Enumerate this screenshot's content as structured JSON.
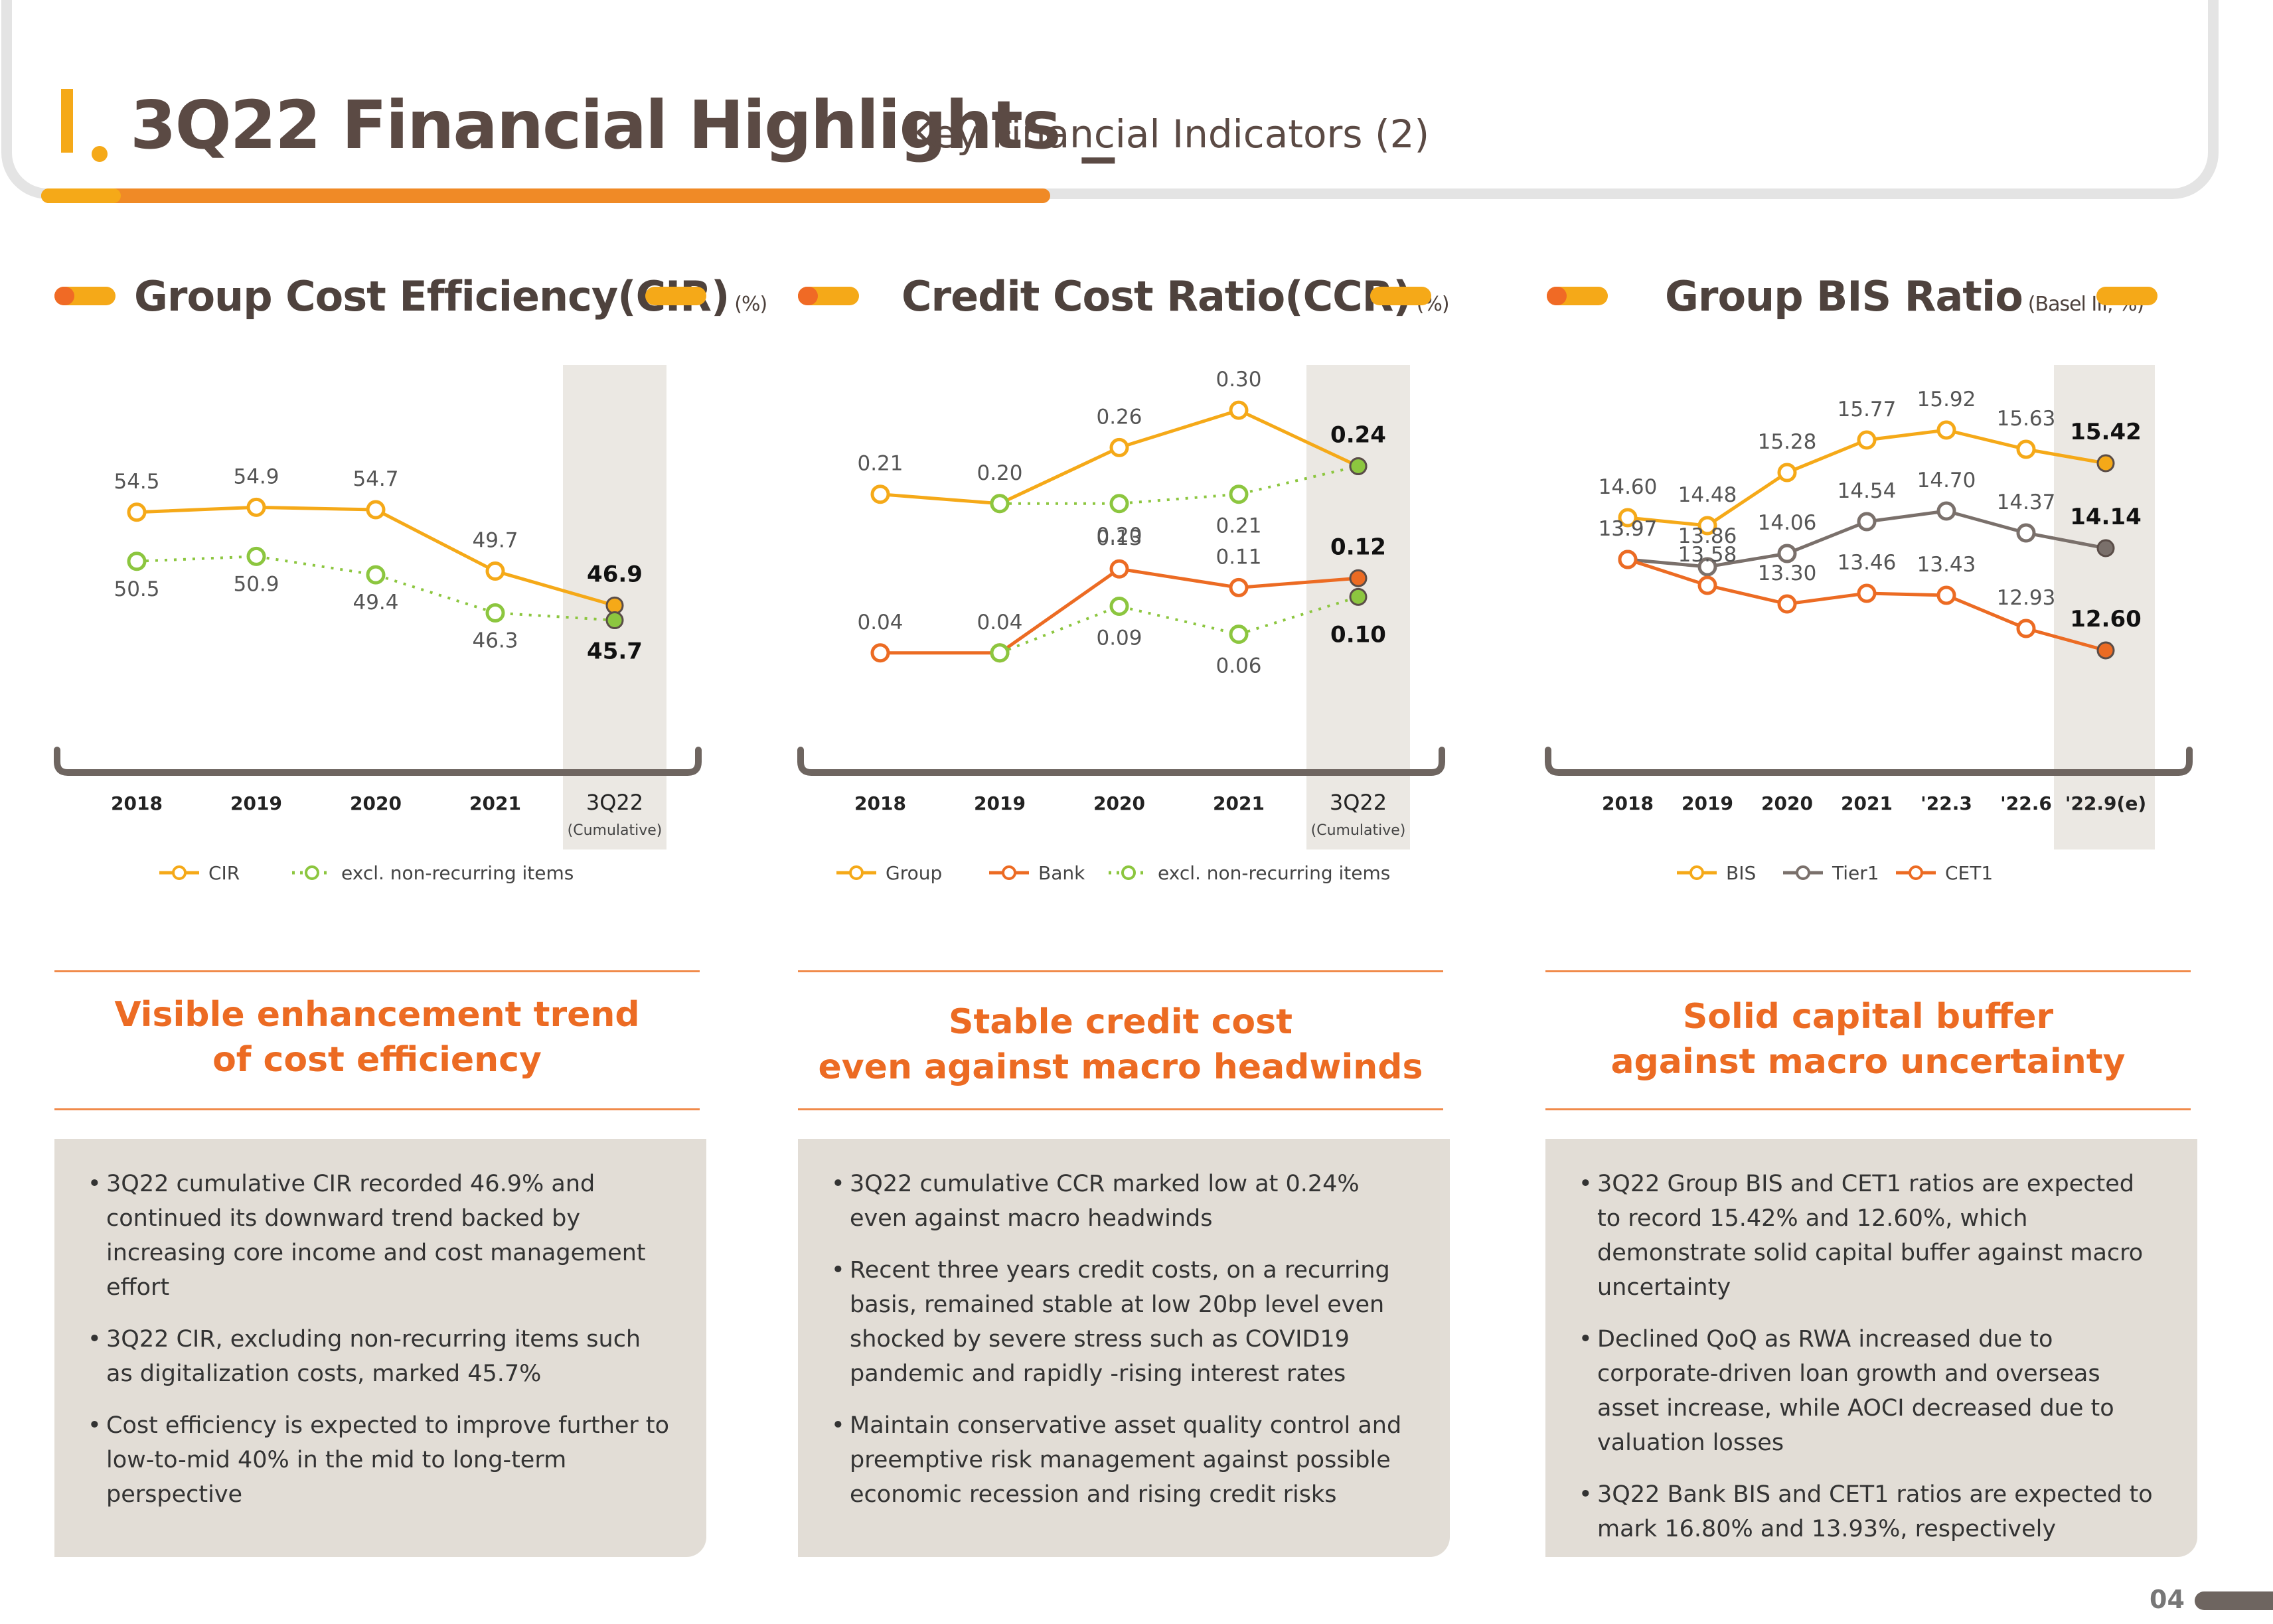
{
  "header": {
    "roman": "I.",
    "title": "3Q22 Financial Highlights _",
    "subtitle": "Key Financial Indicators (2)"
  },
  "page_number": "04",
  "colors": {
    "orange": "#ec6b23",
    "yellow": "#f5a918",
    "green": "#8cc63f",
    "grey": "#7a706b"
  },
  "sections": [
    {
      "title": "Group Cost Efficiency(CIR)",
      "unit": "(%)",
      "headline_line1": "Visible enhancement trend",
      "headline_line2": "of cost efficiency",
      "bullets": [
        "3Q22 cumulative CIR recorded 46.9% and continued its downward trend backed by increasing core income and cost management effort",
        "3Q22 CIR, excluding non-recurring items such as digitalization costs, marked 45.7%",
        "Cost efficiency is expected to improve further to low-to-mid 40% in the mid to long-term perspective"
      ]
    },
    {
      "title": "Credit Cost Ratio(CCR)",
      "unit": "(%)",
      "headline_line1": "Stable credit cost",
      "headline_line2": "even against macro headwinds",
      "bullets": [
        "3Q22 cumulative CCR marked low at 0.24% even against macro headwinds",
        "Recent three years credit costs, on a recurring basis, remained stable at low 20bp level even shocked by severe stress such as COVID19 pandemic and rapidly -rising interest rates",
        "Maintain conservative asset quality control and preemptive risk management against possible economic recession and rising credit risks"
      ]
    },
    {
      "title": "Group BIS Ratio",
      "unit": "(Basel III, %)",
      "headline_line1": "Solid capital buffer",
      "headline_line2": "against macro uncertainty",
      "bullets": [
        "3Q22 Group BIS and CET1 ratios are expected to record 15.42% and 12.60%, which demonstrate solid capital buffer against macro uncertainty",
        "Declined QoQ as RWA increased due to corporate-driven loan growth and overseas asset increase, while AOCI decreased due to valuation losses",
        "3Q22 Bank BIS and CET1 ratios are expected to mark 16.80% and 13.93%, respectively"
      ]
    }
  ],
  "chart_data": [
    {
      "type": "line",
      "categories": [
        "2018",
        "2019",
        "2020",
        "2021",
        "3Q22"
      ],
      "highlight_note": "(Cumulative)",
      "ylim": [
        40,
        60
      ],
      "series": [
        {
          "name": "CIR",
          "color": "#f5a918",
          "style": "solid",
          "values": [
            54.5,
            54.9,
            54.7,
            49.7,
            46.9
          ],
          "labels": [
            "54.5",
            "54.9",
            "54.7",
            "49.7",
            "46.9"
          ]
        },
        {
          "name": "excl. non-recurring items",
          "color": "#8cc63f",
          "style": "dotted",
          "values": [
            50.5,
            50.9,
            49.4,
            46.3,
            45.7
          ],
          "labels": [
            "50.5",
            "50.9",
            "49.4",
            "46.3",
            "45.7"
          ]
        }
      ]
    },
    {
      "type": "line",
      "categories": [
        "2018",
        "2019",
        "2020",
        "2021",
        "3Q22"
      ],
      "highlight_note": "(Cumulative)",
      "ylim": [
        0,
        0.32
      ],
      "series": [
        {
          "name": "Group",
          "color": "#f5a918",
          "style": "solid",
          "values": [
            0.21,
            0.2,
            0.26,
            0.3,
            0.24
          ],
          "labels": [
            "0.21",
            "0.20",
            "0.26",
            "0.30",
            "0.24"
          ]
        },
        {
          "name": "Bank",
          "color": "#ec6b23",
          "style": "solid",
          "values": [
            0.04,
            0.04,
            0.13,
            0.11,
            0.12
          ],
          "labels": [
            "0.04",
            "0.04",
            "0.13",
            "0.11",
            "0.12"
          ]
        },
        {
          "name": "excl. non-recurring items",
          "color": "#8cc63f",
          "style": "dotted",
          "values": [
            null,
            0.2,
            0.2,
            0.21,
            0.24
          ],
          "labels": [
            "",
            "",
            "0.20",
            "0.21",
            ""
          ],
          "tail": [
            null,
            0.04,
            0.09,
            0.06,
            0.1
          ],
          "tail_labels": [
            "",
            "",
            "0.09",
            "0.06",
            "0.10"
          ]
        }
      ]
    },
    {
      "type": "line",
      "categories": [
        "2018",
        "2019",
        "2020",
        "2021",
        "'22.3",
        "'22.6",
        "'22.9(e)"
      ],
      "ylim": [
        12,
        16
      ],
      "series": [
        {
          "name": "BIS",
          "color": "#f5a918",
          "style": "solid",
          "values": [
            14.6,
            14.48,
            15.28,
            15.77,
            15.92,
            15.63,
            15.42
          ],
          "labels": [
            "14.60",
            "14.48",
            "15.28",
            "15.77",
            "15.92",
            "15.63",
            "15.42"
          ]
        },
        {
          "name": "Tier1",
          "color": "#7a706b",
          "style": "solid",
          "values": [
            13.97,
            13.86,
            14.06,
            14.54,
            14.7,
            14.37,
            14.14
          ],
          "labels": [
            "13.97",
            "13.86",
            "14.06",
            "14.54",
            "14.70",
            "14.37",
            "14.14"
          ]
        },
        {
          "name": "CET1",
          "color": "#ec6b23",
          "style": "solid",
          "values": [
            13.97,
            13.58,
            13.3,
            13.46,
            13.43,
            12.93,
            12.6
          ],
          "labels": [
            "13.97",
            "13.58",
            "13.30",
            "13.46",
            "13.43",
            "12.93",
            "12.60"
          ]
        }
      ]
    }
  ]
}
